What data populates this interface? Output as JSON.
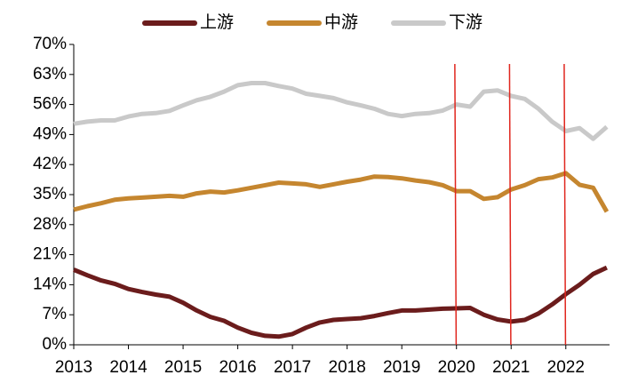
{
  "chart_data": {
    "type": "line",
    "x": [
      2013,
      2013.25,
      2013.5,
      2013.75,
      2014,
      2014.25,
      2014.5,
      2014.75,
      2015,
      2015.25,
      2015.5,
      2015.75,
      2016,
      2016.25,
      2016.5,
      2016.75,
      2017,
      2017.25,
      2017.5,
      2017.75,
      2018,
      2018.25,
      2018.5,
      2018.75,
      2019,
      2019.25,
      2019.5,
      2019.75,
      2020,
      2020.25,
      2020.5,
      2020.75,
      2021,
      2021.25,
      2021.5,
      2021.75,
      2022,
      2022.25,
      2022.5,
      2022.75
    ],
    "series": [
      {
        "name": "上游",
        "color": "#6b1c1c",
        "values": [
          17.5,
          16.2,
          15,
          14.2,
          13,
          12.3,
          11.7,
          11.2,
          9.8,
          8,
          6.5,
          5.6,
          4,
          2.8,
          2.1,
          1.9,
          2.5,
          4,
          5.2,
          5.8,
          6,
          6.2,
          6.7,
          7.4,
          8,
          8,
          8.2,
          8.4,
          8.5,
          8.6,
          7,
          5.9,
          5.4,
          5.8,
          7.3,
          9.4,
          11.8,
          14,
          16.5,
          18
        ]
      },
      {
        "name": "中游",
        "color": "#c5862f",
        "values": [
          31.5,
          32.3,
          33,
          33.8,
          34.1,
          34.3,
          34.5,
          34.7,
          34.5,
          35.3,
          35.7,
          35.5,
          36,
          36.6,
          37.2,
          37.8,
          37.6,
          37.4,
          36.8,
          37.4,
          38,
          38.5,
          39.2,
          39.1,
          38.8,
          38.3,
          37.9,
          37.2,
          35.8,
          35.8,
          34,
          34.4,
          36.2,
          37.2,
          38.6,
          39,
          40,
          37.3,
          36.6,
          31
        ]
      },
      {
        "name": "下游",
        "color": "#c9c9c9",
        "values": [
          51.5,
          52,
          52.3,
          52.3,
          53.2,
          53.8,
          54,
          54.5,
          55.8,
          57,
          57.8,
          59,
          60.5,
          61,
          61,
          60.3,
          59.7,
          58.5,
          58,
          57.5,
          56.5,
          55.8,
          55,
          53.8,
          53.3,
          53.8,
          54,
          54.6,
          56,
          55.5,
          59,
          59.3,
          58,
          57.3,
          55,
          52,
          49.8,
          50.5,
          48,
          50.8
        ]
      }
    ],
    "vlines": [
      2019.97,
      2020.97,
      2021.97
    ],
    "vline_color": "#e0261e",
    "xlim": [
      2013,
      2022.8
    ],
    "xticks": [
      2013,
      2014,
      2015,
      2016,
      2017,
      2018,
      2019,
      2020,
      2021,
      2022
    ],
    "ylim": [
      0,
      70
    ],
    "yticks": [
      {
        "value": 0,
        "label": "0%"
      },
      {
        "value": 7,
        "label": "7%"
      },
      {
        "value": 14,
        "label": "14%"
      },
      {
        "value": 21,
        "label": "21%"
      },
      {
        "value": 28,
        "label": "28%"
      },
      {
        "value": 35,
        "label": "35%"
      },
      {
        "value": 42,
        "label": "42%"
      },
      {
        "value": 49,
        "label": "49%"
      },
      {
        "value": 56,
        "label": "56%"
      },
      {
        "value": 63,
        "label": "63%"
      },
      {
        "value": 70,
        "label": "70%"
      }
    ],
    "legend": "top"
  }
}
